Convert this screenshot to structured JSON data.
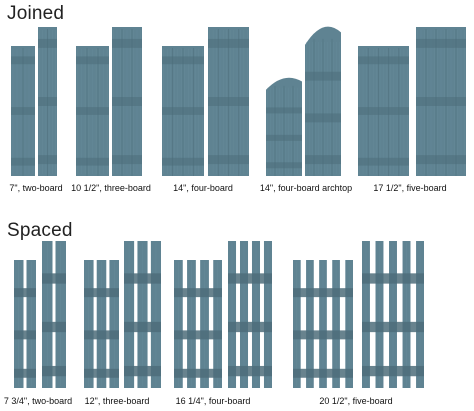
{
  "colors": {
    "shutter_fill": "#5f8392",
    "shutter_board": "#6b909f",
    "shutter_dark": "#4d6d7a",
    "background": "#ffffff"
  },
  "sections": [
    {
      "title": "Joined",
      "groups": [
        {
          "caption": "7\", two-board",
          "boards": 2,
          "style": "joined",
          "arched": false
        },
        {
          "caption": "10 1/2\", three-board",
          "boards": 3,
          "style": "joined",
          "arched": false
        },
        {
          "caption": "14\", four-board",
          "boards": 4,
          "style": "joined",
          "arched": false
        },
        {
          "caption": "14\", four-board archtop",
          "boards": 4,
          "style": "joined",
          "arched": true
        },
        {
          "caption": "17 1/2\", five-board",
          "boards": 5,
          "style": "joined",
          "arched": false
        }
      ]
    },
    {
      "title": "Spaced",
      "groups": [
        {
          "caption": "7 3/4\", two-board",
          "boards": 2,
          "style": "spaced",
          "arched": false
        },
        {
          "caption": "12\", three-board",
          "boards": 3,
          "style": "spaced",
          "arched": false
        },
        {
          "caption": "16 1/4\", four-board",
          "boards": 4,
          "style": "spaced",
          "arched": false
        },
        {
          "caption": "20 1/2\", five-board",
          "boards": 5,
          "style": "spaced",
          "arched": false
        }
      ]
    }
  ]
}
